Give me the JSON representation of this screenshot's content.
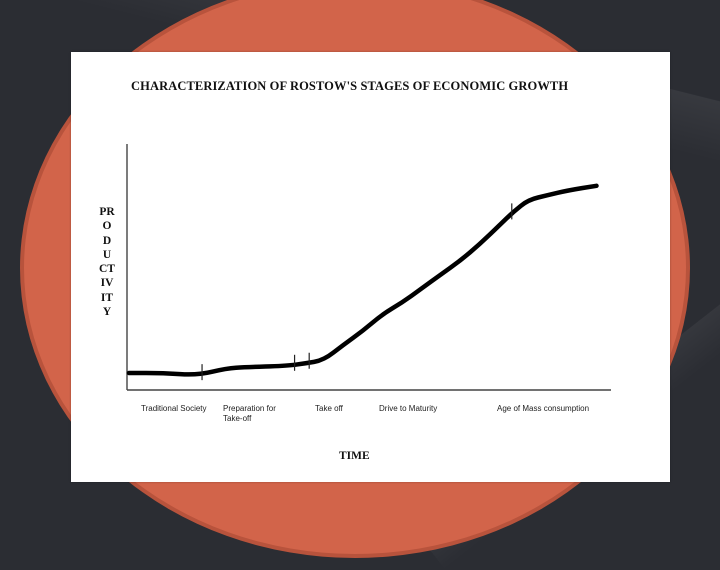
{
  "chart_data": {
    "type": "line",
    "title": "CHARACTERIZATION OF ROSTOW'S STAGES OF ECONOMIC GROWTH",
    "xlabel": "TIME",
    "ylabel": "PRODUCTIVITY",
    "stages": [
      {
        "label": "Traditional Society",
        "x": 0
      },
      {
        "label": "Preparation for Take-off",
        "x": 1
      },
      {
        "label": "Take off",
        "x": 2
      },
      {
        "label": "Drive to Maturity",
        "x": 3
      },
      {
        "label": "Age of Mass consumption",
        "x": 4
      }
    ],
    "xlim": [
      0,
      5
    ],
    "ylim": [
      0,
      1
    ],
    "grid": false,
    "series": [
      {
        "x": [
          0.0,
          0.35,
          0.7,
          1.0,
          1.2,
          1.6,
          1.8,
          2.0,
          2.2,
          2.4,
          2.6,
          2.8,
          3.0,
          3.2,
          3.4,
          3.6,
          3.8,
          3.95,
          4.1,
          4.3,
          4.5,
          4.8
        ],
        "y": [
          0.03,
          0.03,
          0.02,
          0.05,
          0.055,
          0.06,
          0.07,
          0.085,
          0.15,
          0.21,
          0.28,
          0.33,
          0.39,
          0.45,
          0.51,
          0.58,
          0.66,
          0.72,
          0.77,
          0.79,
          0.81,
          0.83
        ]
      }
    ],
    "tick_marks_x": [
      0.75,
      1.7,
      1.85,
      3.93
    ]
  }
}
